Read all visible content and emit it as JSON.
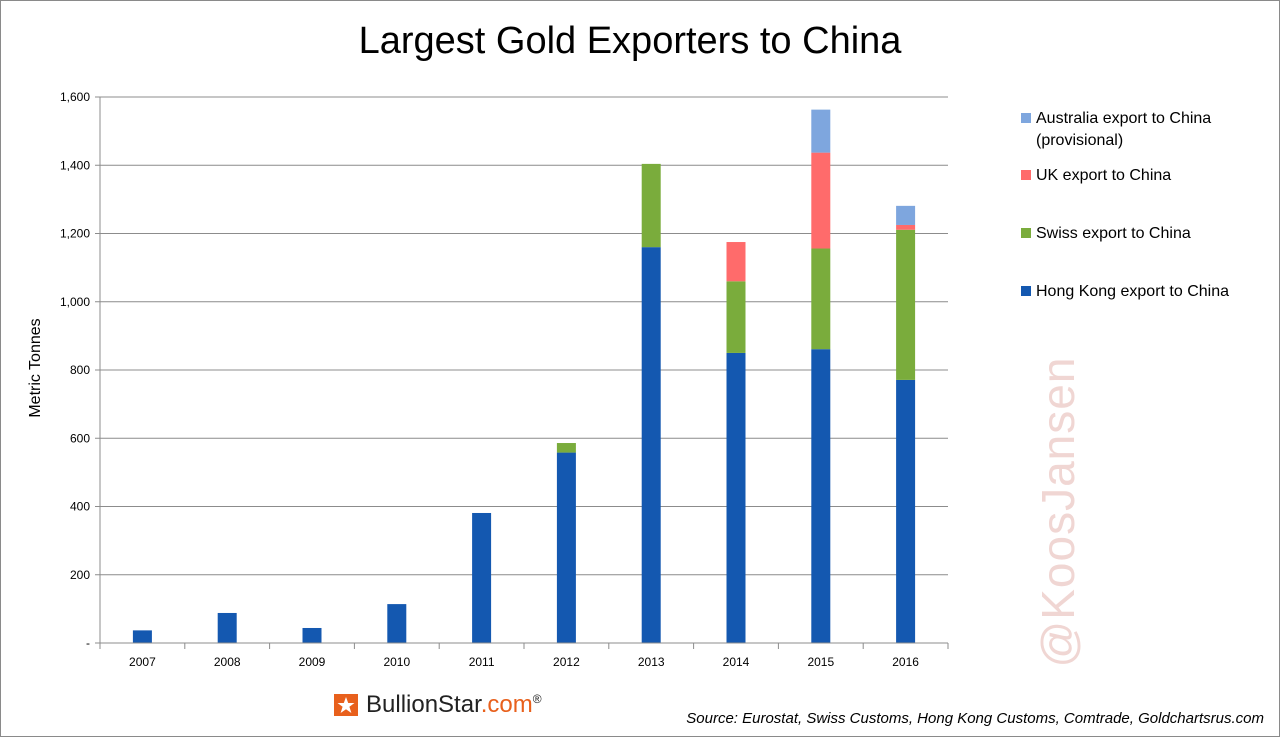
{
  "chart_data": {
    "type": "bar",
    "stacked": true,
    "title": "Largest Gold Exporters to China",
    "ylabel": "Metric Tonnes",
    "xlabel": "",
    "ylim": [
      0,
      1600
    ],
    "yticks": [
      0,
      200,
      400,
      600,
      800,
      1000,
      1200,
      1400,
      1600
    ],
    "ytick_labels": [
      "-",
      "200",
      "400",
      "600",
      "800",
      "1,000",
      "1,200",
      "1,400",
      "1,600"
    ],
    "grid": true,
    "legend_position": "right",
    "categories": [
      "2007",
      "2008",
      "2009",
      "2010",
      "2011",
      "2012",
      "2013",
      "2014",
      "2015",
      "2016"
    ],
    "series": [
      {
        "name": "Hong Kong export to China",
        "color": "#1458b0",
        "values": [
          37,
          88,
          44,
          114,
          381,
          558,
          1160,
          850,
          861,
          771
        ]
      },
      {
        "name": "Swiss export to China",
        "color": "#7aac3c",
        "values": [
          0,
          0,
          0,
          0,
          0,
          28,
          244,
          210,
          295,
          440
        ]
      },
      {
        "name": "UK export to China",
        "color": "#ff6b6b",
        "values": [
          0,
          0,
          0,
          0,
          0,
          0,
          0,
          115,
          281,
          14
        ]
      },
      {
        "name": "Australia export to China (provisional)",
        "color": "#7ea6de",
        "values": [
          0,
          0,
          0,
          0,
          0,
          0,
          0,
          0,
          126,
          56
        ]
      }
    ]
  },
  "legend": {
    "items": [
      {
        "label": "Australia export to China (provisional)",
        "color": "#7ea6de"
      },
      {
        "label": "UK export to China",
        "color": "#ff6b6b"
      },
      {
        "label": "Swiss export to China",
        "color": "#7aac3c"
      },
      {
        "label": "Hong Kong export to China",
        "color": "#1458b0"
      }
    ]
  },
  "watermark": "@KoosJansen",
  "brand": {
    "name": "BullionStar",
    "suffix": ".com",
    "reg_mark": "®",
    "icon": "bullionstar-logo-icon",
    "accent": "#e8601c"
  },
  "source": "Source: Eurostat, Swiss Customs, Hong Kong Customs, Comtrade, Goldchartsrus.com"
}
